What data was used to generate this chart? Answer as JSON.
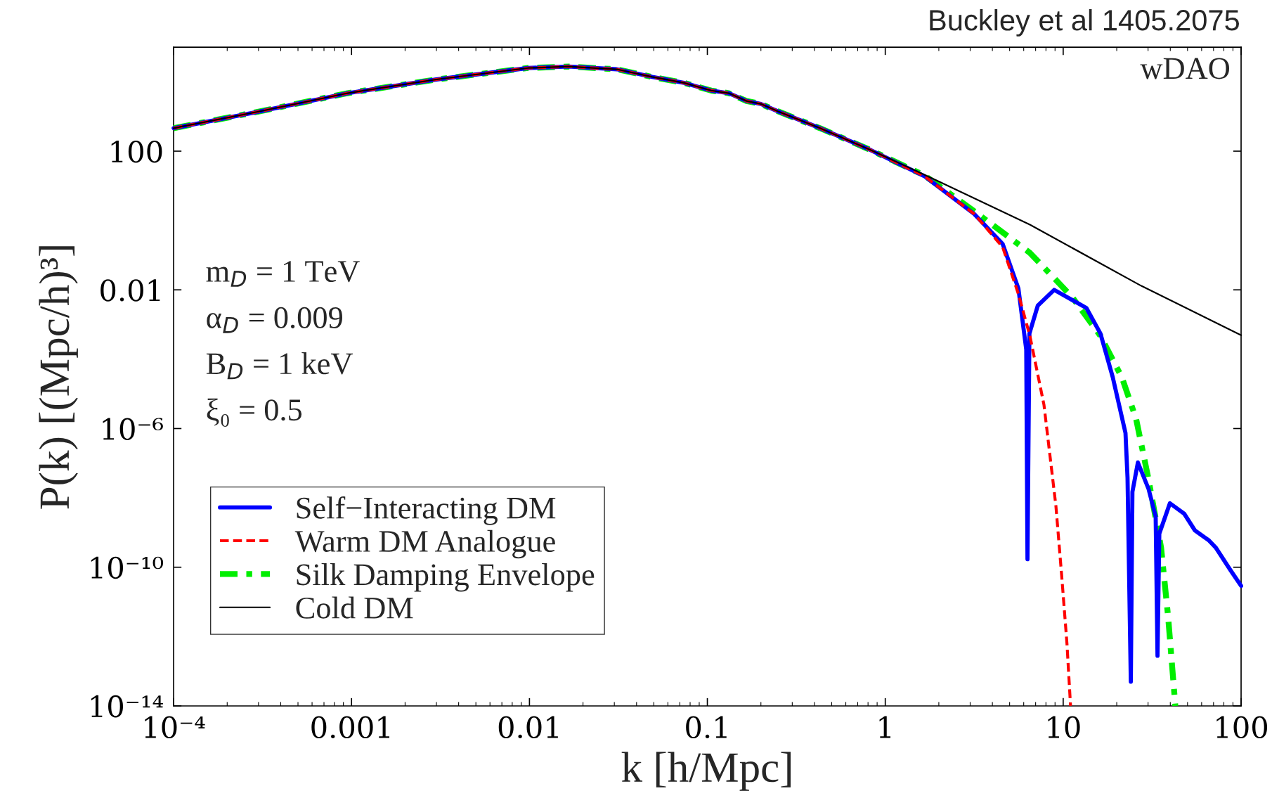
{
  "chart_data": {
    "type": "line",
    "xlabel": "k [h/Mpc]",
    "ylabel": "P(k) [(Mpc/h)³]",
    "annotations": [
      "Buckley et al 1405.2075",
      "wDAO",
      "m$_{D}$ = 1 TeV",
      "α$_{D}$ = 0.009",
      "B$_{D}$ = 1 keV",
      "ξ₀ = 0.5"
    ],
    "log": "xy",
    "xlim": [
      0.0001,
      100
    ],
    "ylim": [
      1e-14,
      100000
    ],
    "xticks": [
      {
        "value": 0.0001,
        "label": "10⁻⁴"
      },
      0.001,
      0.01,
      0.1,
      1,
      10,
      100
    ],
    "yticks": [
      {
        "value": 1e-14,
        "label": "10⁻¹⁴"
      },
      {
        "value": 1e-10,
        "label": "10⁻¹⁰"
      },
      {
        "value": 1e-06,
        "label": "10⁻⁶"
      },
      0.01,
      100
    ],
    "grid": false,
    "legend": "bottom left",
    "series": [
      {
        "name": "Self−Interacting DM",
        "color": "#0000ff",
        "line_style": "solid",
        "x": [
          0.0001,
          0.0003,
          0.00095,
          0.003,
          0.0098,
          0.0166,
          0.031,
          0.049,
          0.074,
          0.105,
          0.132,
          0.166,
          0.2,
          0.25,
          0.43,
          0.83,
          1.66,
          3.16,
          4.57,
          5.6,
          6.2,
          6.3,
          6.46,
          7.2,
          8.9,
          13.5,
          16.2,
          19,
          22.4,
          23,
          24,
          24.5,
          26.3,
          30.2,
          33.1,
          33.9,
          34.7,
          39.8,
          47.9,
          55,
          66,
          72,
          87,
          100
        ],
        "values": [
          460,
          1380,
          4700,
          11700,
          25000,
          27500,
          23000,
          13800,
          9300,
          5600,
          4700,
          2800,
          2300,
          1400,
          460,
          107,
          19,
          1.55,
          0.21,
          0.011,
          0.00019,
          1.7e-10,
          0.00055,
          0.0035,
          0.01,
          0.003,
          0.00055,
          3e-05,
          7.4e-07,
          3.8e-08,
          5e-14,
          1.5e-08,
          1.05e-07,
          1.8e-08,
          2.9e-09,
          2.8e-13,
          9.3e-10,
          7e-09,
          3.5e-09,
          1.15e-09,
          5.9e-10,
          3.7e-10,
          8.3e-11,
          2.9e-11
        ]
      },
      {
        "name": "Warm DM Analogue",
        "color": "#ff0000",
        "line_style": "dashed",
        "x": [
          0.0001,
          0.0003,
          0.00095,
          0.003,
          0.0098,
          0.0166,
          0.031,
          0.049,
          0.074,
          0.105,
          0.132,
          0.166,
          0.2,
          0.25,
          0.43,
          0.83,
          1.66,
          3.16,
          4.57,
          5.6,
          6.5,
          7.8,
          9.1,
          9.8,
          10.5,
          11
        ],
        "values": [
          460,
          1380,
          4700,
          11700,
          25000,
          27500,
          23000,
          13800,
          9300,
          5600,
          4700,
          2800,
          2300,
          1400,
          460,
          107,
          19,
          1.55,
          0.17,
          0.0076,
          0.00047,
          4.8e-06,
          5.9e-09,
          6e-11,
          6.3e-13,
          1e-14
        ]
      },
      {
        "name": "Silk Damping Envelope",
        "color": "#00ee00",
        "line_style": "dashdot",
        "x": [
          0.0001,
          0.0003,
          0.00095,
          0.003,
          0.0098,
          0.0166,
          0.031,
          0.049,
          0.074,
          0.105,
          0.132,
          0.166,
          0.2,
          0.25,
          0.43,
          0.83,
          1.66,
          3.16,
          6.5,
          11.2,
          16.2,
          21.4,
          25.7,
          30,
          35.5,
          38.9,
          42.7
        ],
        "values": [
          460,
          1380,
          4700,
          11700,
          25000,
          27500,
          23000,
          13800,
          9300,
          5600,
          4700,
          2800,
          2300,
          1400,
          460,
          107,
          20,
          1.86,
          0.117,
          0.0063,
          0.00047,
          2.95e-05,
          1.9e-06,
          4e-08,
          3.7e-10,
          3.7e-12,
          1e-14
        ]
      },
      {
        "name": "Cold DM",
        "color": "#000000",
        "line_style": "solid",
        "x": [
          0.0001,
          0.0003,
          0.00095,
          0.003,
          0.0098,
          0.0166,
          0.031,
          0.049,
          0.074,
          0.105,
          0.132,
          0.166,
          0.2,
          0.25,
          0.43,
          0.83,
          1.66,
          6.5,
          27.5,
          100
        ],
        "values": [
          460,
          1380,
          4700,
          11700,
          25000,
          27500,
          23000,
          13800,
          9300,
          5600,
          4700,
          2800,
          2300,
          1400,
          460,
          107,
          21,
          0.76,
          0.013,
          0.00049
        ]
      }
    ]
  }
}
